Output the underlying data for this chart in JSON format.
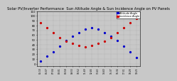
{
  "title": "Solar PV/Inverter Performance  Sun Altitude Angle & Sun Incidence Angle on PV Panels",
  "title_fontsize": 3.8,
  "background_color": "#c8c8c8",
  "plot_bg_color": "#c8c8c8",
  "grid_color": "#888888",
  "legend_labels": [
    "Altitude Angle",
    "Incidence Angle"
  ],
  "legend_colors": [
    "#0000cc",
    "#cc0000"
  ],
  "ylim": [
    -5,
    110
  ],
  "ytick_values": [
    0,
    10,
    20,
    30,
    40,
    50,
    60,
    70,
    80,
    90,
    100,
    110
  ],
  "xlim_min": 0,
  "xlim_max": 15,
  "time_labels": [
    "05:10",
    "06:07",
    "07:04",
    "08:01",
    "08:58",
    "09:55",
    "10:52",
    "11:49",
    "12:46",
    "13:43",
    "14:40",
    "15:37",
    "16:34",
    "17:31",
    "18:28",
    "19:25"
  ],
  "altitude_x": [
    0,
    1,
    2,
    3,
    4,
    5,
    6,
    7,
    8,
    9,
    10,
    11,
    12,
    13,
    14,
    15
  ],
  "altitude_y": [
    5,
    15,
    25,
    37,
    48,
    57,
    65,
    72,
    75,
    72,
    65,
    57,
    48,
    37,
    25,
    12
  ],
  "incidence_x": [
    0,
    1,
    2,
    3,
    4,
    5,
    6,
    7,
    8,
    9,
    10,
    11,
    12,
    13,
    14,
    15
  ],
  "incidence_y": [
    85,
    75,
    65,
    55,
    47,
    42,
    38,
    35,
    38,
    42,
    47,
    55,
    65,
    75,
    85,
    95
  ],
  "marker_size": 1.8,
  "legend_fontsize": 2.5,
  "tick_fontsize": 2.8,
  "xtick_fontsize": 2.2
}
